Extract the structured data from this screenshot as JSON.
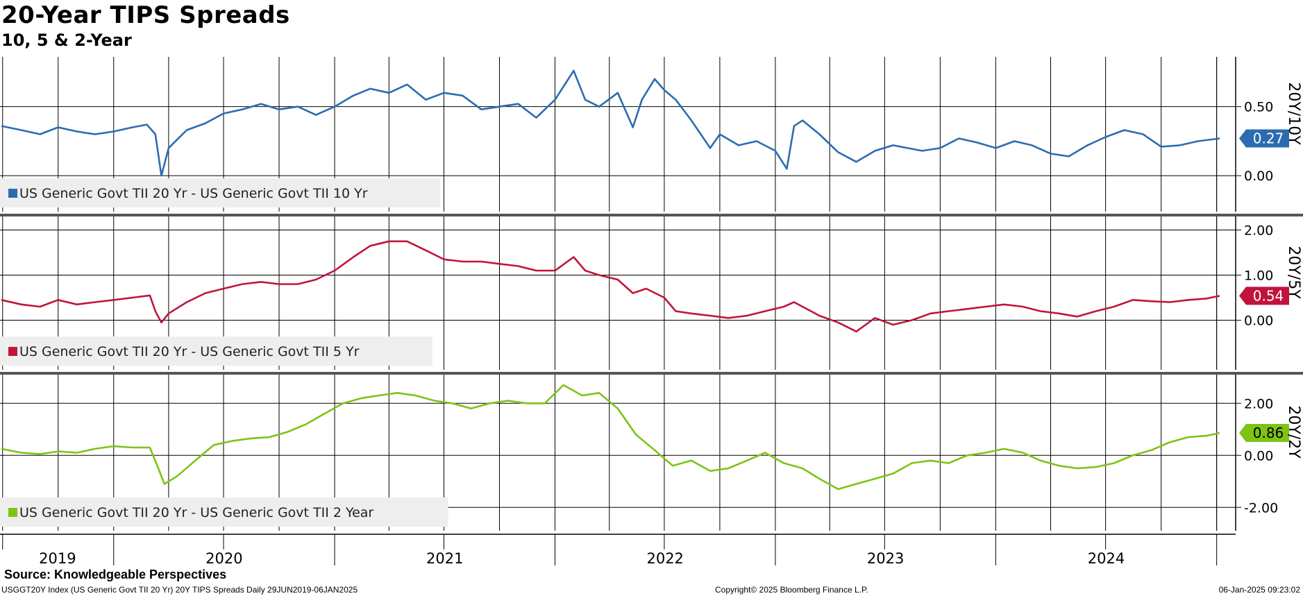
{
  "title": "20-Year TIPS Spreads",
  "subtitle": "10, 5 & 2-Year",
  "source": "Source: Knowledgeable Perspectives",
  "footer": {
    "left": "USGGT20Y Index (US Generic Govt TII 20 Yr) 20Y TIPS Spreads  Daily 29JUN2019-06JAN2025",
    "copyright": "Copyright© 2025 Bloomberg Finance L.P.",
    "timestamp": "06-Jan-2025 09:23:02"
  },
  "chart_data": {
    "type": "line",
    "x_range": [
      "2019-06-29",
      "2025-01-06"
    ],
    "x_labels": [
      "2019",
      "2020",
      "2021",
      "2022",
      "2023",
      "2024"
    ],
    "grid": true,
    "panels": [
      {
        "axis_label": "20Y/10Y",
        "legend": "US Generic Govt TII 20 Yr - US Generic Govt TII 10 Yr",
        "color": "#2b6cb0",
        "last_value": "0.27",
        "y_ticks": [
          "0.50",
          "0.00"
        ],
        "y_range": [
          -0.26,
          0.86
        ],
        "series": [
          [
            "2019-06-29",
            0.36
          ],
          [
            "2019-08-01",
            0.33
          ],
          [
            "2019-09-01",
            0.3
          ],
          [
            "2019-10-01",
            0.35
          ],
          [
            "2019-11-01",
            0.32
          ],
          [
            "2019-12-01",
            0.3
          ],
          [
            "2020-01-01",
            0.32
          ],
          [
            "2020-02-01",
            0.35
          ],
          [
            "2020-02-25",
            0.37
          ],
          [
            "2020-03-10",
            0.3
          ],
          [
            "2020-03-20",
            0.0
          ],
          [
            "2020-04-01",
            0.2
          ],
          [
            "2020-05-01",
            0.33
          ],
          [
            "2020-06-01",
            0.38
          ],
          [
            "2020-07-01",
            0.45
          ],
          [
            "2020-08-01",
            0.48
          ],
          [
            "2020-09-01",
            0.52
          ],
          [
            "2020-10-01",
            0.48
          ],
          [
            "2020-11-01",
            0.5
          ],
          [
            "2020-12-01",
            0.44
          ],
          [
            "2021-01-01",
            0.5
          ],
          [
            "2021-02-01",
            0.58
          ],
          [
            "2021-03-01",
            0.63
          ],
          [
            "2021-04-01",
            0.6
          ],
          [
            "2021-05-01",
            0.66
          ],
          [
            "2021-06-01",
            0.55
          ],
          [
            "2021-07-01",
            0.6
          ],
          [
            "2021-08-01",
            0.58
          ],
          [
            "2021-09-01",
            0.48
          ],
          [
            "2021-10-01",
            0.5
          ],
          [
            "2021-11-01",
            0.52
          ],
          [
            "2021-12-01",
            0.42
          ],
          [
            "2022-01-01",
            0.55
          ],
          [
            "2022-02-01",
            0.76
          ],
          [
            "2022-02-20",
            0.55
          ],
          [
            "2022-03-15",
            0.5
          ],
          [
            "2022-04-15",
            0.6
          ],
          [
            "2022-05-10",
            0.35
          ],
          [
            "2022-05-25",
            0.55
          ],
          [
            "2022-06-15",
            0.7
          ],
          [
            "2022-07-01",
            0.62
          ],
          [
            "2022-07-20",
            0.55
          ],
          [
            "2022-08-15",
            0.4
          ],
          [
            "2022-09-15",
            0.2
          ],
          [
            "2022-10-01",
            0.3
          ],
          [
            "2022-11-01",
            0.22
          ],
          [
            "2022-12-01",
            0.25
          ],
          [
            "2023-01-01",
            0.18
          ],
          [
            "2023-01-20",
            0.05
          ],
          [
            "2023-02-01",
            0.36
          ],
          [
            "2023-02-15",
            0.4
          ],
          [
            "2023-03-15",
            0.3
          ],
          [
            "2023-04-15",
            0.17
          ],
          [
            "2023-05-15",
            0.1
          ],
          [
            "2023-06-15",
            0.18
          ],
          [
            "2023-07-15",
            0.22
          ],
          [
            "2023-09-01",
            0.18
          ],
          [
            "2023-10-01",
            0.2
          ],
          [
            "2023-11-01",
            0.27
          ],
          [
            "2023-12-01",
            0.24
          ],
          [
            "2024-01-01",
            0.2
          ],
          [
            "2024-02-01",
            0.25
          ],
          [
            "2024-03-01",
            0.22
          ],
          [
            "2024-04-01",
            0.16
          ],
          [
            "2024-05-01",
            0.14
          ],
          [
            "2024-06-01",
            0.22
          ],
          [
            "2024-07-01",
            0.28
          ],
          [
            "2024-08-01",
            0.33
          ],
          [
            "2024-09-01",
            0.3
          ],
          [
            "2024-10-01",
            0.21
          ],
          [
            "2024-11-01",
            0.22
          ],
          [
            "2024-12-01",
            0.25
          ],
          [
            "2025-01-06",
            0.27
          ]
        ]
      },
      {
        "axis_label": "20Y/5Y",
        "legend": "US Generic Govt TII 20 Yr - US Generic Govt TII 5 Yr",
        "color": "#c0143c",
        "last_value": "0.54",
        "y_ticks": [
          "2.00",
          "1.00",
          "0.00"
        ],
        "y_range": [
          -1.1,
          2.3
        ],
        "series": [
          [
            "2019-06-29",
            0.45
          ],
          [
            "2019-08-01",
            0.35
          ],
          [
            "2019-09-01",
            0.3
          ],
          [
            "2019-10-01",
            0.45
          ],
          [
            "2019-11-01",
            0.35
          ],
          [
            "2019-12-01",
            0.4
          ],
          [
            "2020-01-01",
            0.45
          ],
          [
            "2020-02-01",
            0.5
          ],
          [
            "2020-03-01",
            0.55
          ],
          [
            "2020-03-10",
            0.2
          ],
          [
            "2020-03-20",
            -0.05
          ],
          [
            "2020-04-01",
            0.15
          ],
          [
            "2020-05-01",
            0.4
          ],
          [
            "2020-06-01",
            0.6
          ],
          [
            "2020-07-01",
            0.7
          ],
          [
            "2020-08-01",
            0.8
          ],
          [
            "2020-09-01",
            0.85
          ],
          [
            "2020-10-01",
            0.8
          ],
          [
            "2020-11-01",
            0.8
          ],
          [
            "2020-12-01",
            0.9
          ],
          [
            "2021-01-01",
            1.1
          ],
          [
            "2021-02-01",
            1.4
          ],
          [
            "2021-03-01",
            1.65
          ],
          [
            "2021-04-01",
            1.75
          ],
          [
            "2021-05-01",
            1.75
          ],
          [
            "2021-06-01",
            1.55
          ],
          [
            "2021-07-01",
            1.35
          ],
          [
            "2021-08-01",
            1.3
          ],
          [
            "2021-09-01",
            1.3
          ],
          [
            "2021-10-01",
            1.25
          ],
          [
            "2021-11-01",
            1.2
          ],
          [
            "2021-12-01",
            1.1
          ],
          [
            "2022-01-01",
            1.1
          ],
          [
            "2022-02-01",
            1.4
          ],
          [
            "2022-02-20",
            1.1
          ],
          [
            "2022-03-15",
            1.0
          ],
          [
            "2022-04-15",
            0.9
          ],
          [
            "2022-05-10",
            0.6
          ],
          [
            "2022-06-01",
            0.7
          ],
          [
            "2022-07-01",
            0.5
          ],
          [
            "2022-07-20",
            0.2
          ],
          [
            "2022-08-15",
            0.15
          ],
          [
            "2022-09-15",
            0.1
          ],
          [
            "2022-10-15",
            0.05
          ],
          [
            "2022-11-15",
            0.1
          ],
          [
            "2022-12-15",
            0.2
          ],
          [
            "2023-01-15",
            0.3
          ],
          [
            "2023-02-01",
            0.4
          ],
          [
            "2023-02-15",
            0.3
          ],
          [
            "2023-03-15",
            0.1
          ],
          [
            "2023-04-15",
            -0.05
          ],
          [
            "2023-05-15",
            -0.25
          ],
          [
            "2023-06-15",
            0.05
          ],
          [
            "2023-07-15",
            -0.1
          ],
          [
            "2023-08-15",
            0.0
          ],
          [
            "2023-09-15",
            0.15
          ],
          [
            "2023-10-15",
            0.2
          ],
          [
            "2023-11-15",
            0.25
          ],
          [
            "2023-12-15",
            0.3
          ],
          [
            "2024-01-15",
            0.35
          ],
          [
            "2024-02-15",
            0.3
          ],
          [
            "2024-03-15",
            0.2
          ],
          [
            "2024-04-15",
            0.15
          ],
          [
            "2024-05-15",
            0.08
          ],
          [
            "2024-06-15",
            0.2
          ],
          [
            "2024-07-15",
            0.3
          ],
          [
            "2024-08-15",
            0.45
          ],
          [
            "2024-09-15",
            0.42
          ],
          [
            "2024-10-15",
            0.4
          ],
          [
            "2024-11-15",
            0.45
          ],
          [
            "2024-12-15",
            0.48
          ],
          [
            "2025-01-06",
            0.54
          ]
        ]
      },
      {
        "axis_label": "20Y/2Y",
        "legend": "US Generic Govt TII 20 Yr - US Generic Govt TII 2 Year",
        "color": "#7dc416",
        "last_value": "0.86",
        "y_ticks": [
          "2.00",
          "0.00",
          "-2.00"
        ],
        "y_range": [
          -2.9,
          3.1
        ],
        "series": [
          [
            "2019-06-29",
            0.25
          ],
          [
            "2019-08-01",
            0.1
          ],
          [
            "2019-09-01",
            0.05
          ],
          [
            "2019-10-01",
            0.15
          ],
          [
            "2019-11-01",
            0.1
          ],
          [
            "2019-12-01",
            0.25
          ],
          [
            "2020-01-01",
            0.35
          ],
          [
            "2020-02-01",
            0.3
          ],
          [
            "2020-03-01",
            0.3
          ],
          [
            "2020-03-15",
            -0.5
          ],
          [
            "2020-03-25",
            -1.1
          ],
          [
            "2020-04-15",
            -0.8
          ],
          [
            "2020-05-15",
            -0.2
          ],
          [
            "2020-06-15",
            0.4
          ],
          [
            "2020-07-15",
            0.55
          ],
          [
            "2020-08-15",
            0.65
          ],
          [
            "2020-09-15",
            0.7
          ],
          [
            "2020-10-15",
            0.9
          ],
          [
            "2020-11-15",
            1.2
          ],
          [
            "2020-12-15",
            1.6
          ],
          [
            "2021-01-15",
            2.0
          ],
          [
            "2021-02-15",
            2.2
          ],
          [
            "2021-03-15",
            2.3
          ],
          [
            "2021-04-15",
            2.4
          ],
          [
            "2021-05-15",
            2.3
          ],
          [
            "2021-06-15",
            2.1
          ],
          [
            "2021-07-15",
            2.0
          ],
          [
            "2021-08-15",
            1.8
          ],
          [
            "2021-09-15",
            2.0
          ],
          [
            "2021-10-15",
            2.1
          ],
          [
            "2021-11-15",
            2.0
          ],
          [
            "2021-12-15",
            2.0
          ],
          [
            "2022-01-15",
            2.7
          ],
          [
            "2022-02-15",
            2.3
          ],
          [
            "2022-03-15",
            2.4
          ],
          [
            "2022-04-15",
            1.8
          ],
          [
            "2022-05-15",
            0.8
          ],
          [
            "2022-06-15",
            0.2
          ],
          [
            "2022-07-15",
            -0.4
          ],
          [
            "2022-08-15",
            -0.2
          ],
          [
            "2022-09-15",
            -0.6
          ],
          [
            "2022-10-15",
            -0.5
          ],
          [
            "2022-11-15",
            -0.2
          ],
          [
            "2022-12-15",
            0.1
          ],
          [
            "2023-01-15",
            -0.3
          ],
          [
            "2023-02-15",
            -0.5
          ],
          [
            "2023-03-15",
            -0.9
          ],
          [
            "2023-04-15",
            -1.3
          ],
          [
            "2023-05-15",
            -1.1
          ],
          [
            "2023-06-15",
            -0.9
          ],
          [
            "2023-07-15",
            -0.7
          ],
          [
            "2023-08-15",
            -0.3
          ],
          [
            "2023-09-15",
            -0.2
          ],
          [
            "2023-10-15",
            -0.3
          ],
          [
            "2023-11-15",
            0.0
          ],
          [
            "2023-12-15",
            0.1
          ],
          [
            "2024-01-15",
            0.25
          ],
          [
            "2024-02-15",
            0.1
          ],
          [
            "2024-03-15",
            -0.2
          ],
          [
            "2024-04-15",
            -0.4
          ],
          [
            "2024-05-15",
            -0.5
          ],
          [
            "2024-06-15",
            -0.45
          ],
          [
            "2024-07-15",
            -0.3
          ],
          [
            "2024-08-15",
            0.0
          ],
          [
            "2024-09-15",
            0.2
          ],
          [
            "2024-10-15",
            0.5
          ],
          [
            "2024-11-15",
            0.7
          ],
          [
            "2024-12-15",
            0.75
          ],
          [
            "2025-01-06",
            0.86
          ]
        ]
      }
    ]
  }
}
